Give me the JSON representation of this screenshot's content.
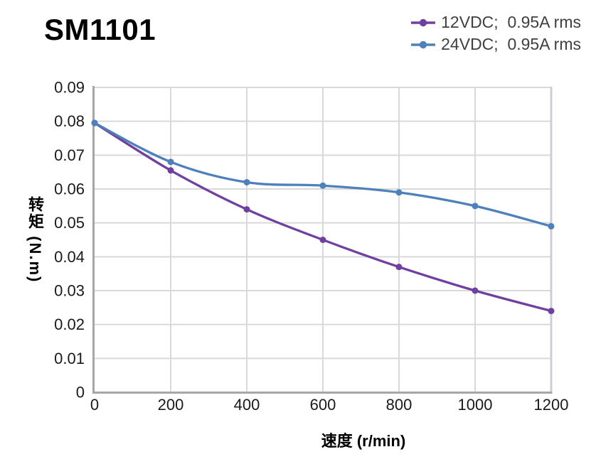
{
  "title": "SM1101",
  "chart_data": {
    "type": "line",
    "title": "SM1101",
    "x": [
      0,
      200,
      400,
      600,
      800,
      1000,
      1200
    ],
    "series": [
      {
        "name": "12VDC;  0.95A rms",
        "color": "#7040A0",
        "values": [
          0.0795,
          0.0655,
          0.054,
          0.045,
          0.037,
          0.03,
          0.024
        ]
      },
      {
        "name": "24VDC;  0.95A rms",
        "color": "#4E80BC",
        "values": [
          0.0795,
          0.068,
          0.062,
          0.061,
          0.059,
          0.055,
          0.049
        ]
      }
    ],
    "xlabel": "速度 (r/min)",
    "ylabel": "转矩 (N.m)",
    "xlim": [
      0,
      1200
    ],
    "ylim": [
      0,
      0.09
    ],
    "xticks": [
      "0",
      "200",
      "400",
      "600",
      "800",
      "1000",
      "1200"
    ],
    "yticks": [
      "0",
      "0.01",
      "0.02",
      "0.03",
      "0.04",
      "0.05",
      "0.06",
      "0.07",
      "0.08",
      "0.09"
    ],
    "grid": true,
    "legend_position": "top-right",
    "style": {
      "grid_color": "#D9D9D9",
      "right_border_color": "#CBCFD5",
      "axis_color": "#A6A6A6",
      "tick_label_color": "#1A1A1A",
      "legend_text_color": "#404040",
      "line_width": 3.3,
      "marker_radius": 4.5
    }
  }
}
